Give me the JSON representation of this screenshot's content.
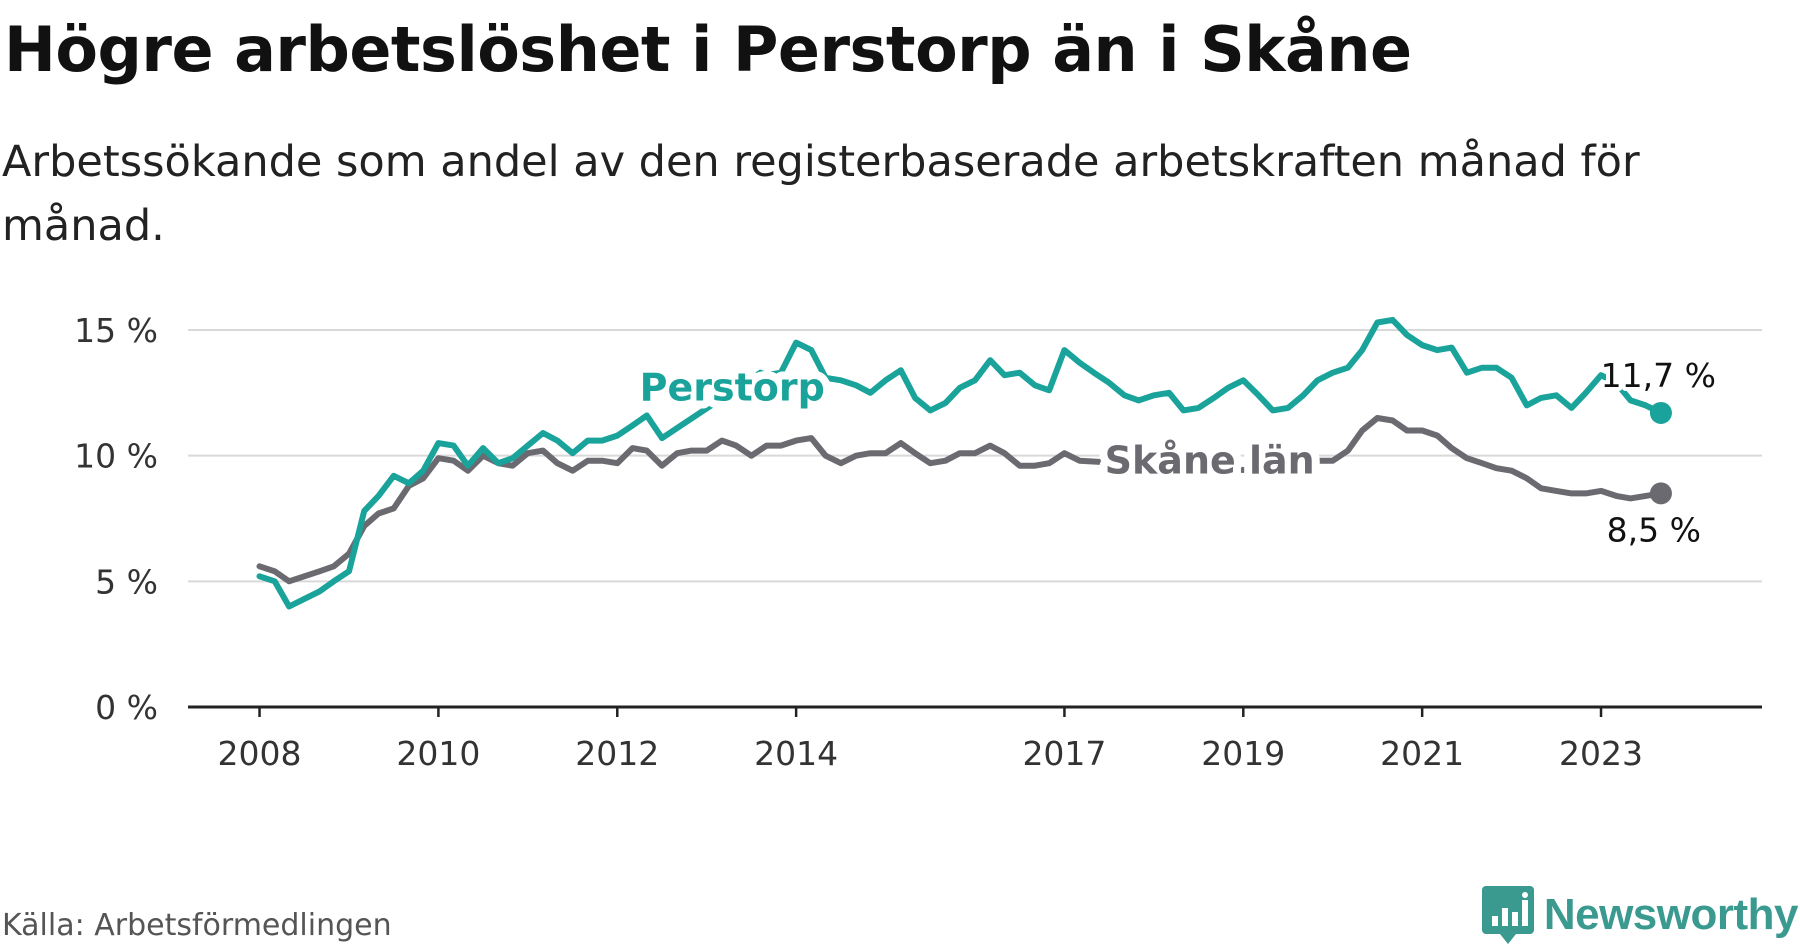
{
  "title": "Högre arbetslöshet i Perstorp än i Skåne",
  "subtitle": "Arbetssökande som andel av den registerbaserade arbetskraften månad för månad.",
  "source": "Källa: Arbetsförmedlingen",
  "brand": {
    "name": "Newsworthy",
    "logo_icon": "bar-chart-icon",
    "color": "#3a9a8f"
  },
  "colors": {
    "perstorp": "#1aa39a",
    "skane": "#6b6a70",
    "grid": "#d9d9d9",
    "axis": "#222222"
  },
  "chart_data": {
    "type": "line",
    "title": "Högre arbetslöshet i Perstorp än i Skåne",
    "xlabel": "",
    "ylabel": "",
    "ylim": [
      0,
      15
    ],
    "xlim": [
      2007.2,
      2024.8
    ],
    "grid": true,
    "y_ticks": [
      {
        "value": 0,
        "label": "0 %"
      },
      {
        "value": 5,
        "label": "5 %"
      },
      {
        "value": 10,
        "label": "10 %"
      },
      {
        "value": 15,
        "label": "15 %"
      }
    ],
    "x_ticks": [
      {
        "value": 2008,
        "label": "2008"
      },
      {
        "value": 2010,
        "label": "2010"
      },
      {
        "value": 2012,
        "label": "2012"
      },
      {
        "value": 2014,
        "label": "2014"
      },
      {
        "value": 2017,
        "label": "2017"
      },
      {
        "value": 2019,
        "label": "2019"
      },
      {
        "value": 2021,
        "label": "2021"
      },
      {
        "value": 2023,
        "label": "2023"
      }
    ],
    "series": [
      {
        "name": "Perstorp",
        "label_at": [
          2012.25,
          12.2
        ],
        "end_label": "11,7 %",
        "points": [
          [
            2008.0,
            5.2
          ],
          [
            2008.17,
            5.0
          ],
          [
            2008.33,
            4.0
          ],
          [
            2008.5,
            4.3
          ],
          [
            2008.67,
            4.6
          ],
          [
            2008.83,
            5.0
          ],
          [
            2009.0,
            5.4
          ],
          [
            2009.17,
            7.8
          ],
          [
            2009.33,
            8.4
          ],
          [
            2009.5,
            9.2
          ],
          [
            2009.67,
            8.9
          ],
          [
            2009.83,
            9.4
          ],
          [
            2010.0,
            10.5
          ],
          [
            2010.17,
            10.4
          ],
          [
            2010.33,
            9.6
          ],
          [
            2010.5,
            10.3
          ],
          [
            2010.67,
            9.7
          ],
          [
            2010.83,
            9.9
          ],
          [
            2011.0,
            10.4
          ],
          [
            2011.17,
            10.9
          ],
          [
            2011.33,
            10.6
          ],
          [
            2011.5,
            10.1
          ],
          [
            2011.67,
            10.6
          ],
          [
            2011.83,
            10.6
          ],
          [
            2012.0,
            10.8
          ],
          [
            2012.17,
            11.2
          ],
          [
            2012.33,
            11.6
          ],
          [
            2012.5,
            10.7
          ],
          [
            2012.67,
            11.1
          ],
          [
            2013.6,
            13.3
          ],
          [
            2013.67,
            13.2
          ],
          [
            2013.83,
            13.3
          ],
          [
            2014.0,
            14.5
          ],
          [
            2014.17,
            14.2
          ],
          [
            2014.33,
            13.1
          ],
          [
            2014.5,
            13.0
          ],
          [
            2014.67,
            12.8
          ],
          [
            2014.83,
            12.5
          ],
          [
            2015.0,
            13.0
          ],
          [
            2015.17,
            13.4
          ],
          [
            2015.33,
            12.3
          ],
          [
            2015.5,
            11.8
          ],
          [
            2015.67,
            12.1
          ],
          [
            2015.83,
            12.7
          ],
          [
            2016.0,
            13.0
          ],
          [
            2016.17,
            13.8
          ],
          [
            2016.33,
            13.2
          ],
          [
            2016.5,
            13.3
          ],
          [
            2016.67,
            12.8
          ],
          [
            2016.83,
            12.6
          ],
          [
            2017.0,
            14.2
          ],
          [
            2017.17,
            13.7
          ],
          [
            2017.33,
            13.3
          ],
          [
            2017.5,
            12.9
          ],
          [
            2017.67,
            12.4
          ],
          [
            2017.83,
            12.2
          ],
          [
            2018.0,
            12.4
          ],
          [
            2018.17,
            12.5
          ],
          [
            2018.33,
            11.8
          ],
          [
            2018.5,
            11.9
          ],
          [
            2018.67,
            12.3
          ],
          [
            2018.83,
            12.7
          ],
          [
            2019.0,
            13.0
          ],
          [
            2019.17,
            12.4
          ],
          [
            2019.33,
            11.8
          ],
          [
            2019.5,
            11.9
          ],
          [
            2019.67,
            12.4
          ],
          [
            2019.83,
            13.0
          ],
          [
            2020.0,
            13.3
          ],
          [
            2020.17,
            13.5
          ],
          [
            2020.33,
            14.2
          ],
          [
            2020.5,
            15.3
          ],
          [
            2020.67,
            15.4
          ],
          [
            2020.83,
            14.8
          ],
          [
            2021.0,
            14.4
          ],
          [
            2021.17,
            14.2
          ],
          [
            2021.33,
            14.3
          ],
          [
            2021.5,
            13.3
          ],
          [
            2021.67,
            13.5
          ],
          [
            2021.83,
            13.5
          ],
          [
            2022.0,
            13.1
          ],
          [
            2022.17,
            12.0
          ],
          [
            2022.33,
            12.3
          ],
          [
            2022.5,
            12.4
          ],
          [
            2022.67,
            11.9
          ],
          [
            2022.83,
            12.5
          ],
          [
            2023.0,
            13.2
          ],
          [
            2023.17,
            12.9
          ],
          [
            2023.33,
            12.2
          ],
          [
            2023.5,
            12.0
          ],
          [
            2023.67,
            11.7
          ]
        ]
      },
      {
        "name": "Skåne län",
        "label_at": [
          2017.45,
          9.3
        ],
        "end_label": "8,5 %",
        "points": [
          [
            2008.0,
            5.6
          ],
          [
            2008.17,
            5.4
          ],
          [
            2008.33,
            5.0
          ],
          [
            2008.5,
            5.2
          ],
          [
            2008.67,
            5.4
          ],
          [
            2008.83,
            5.6
          ],
          [
            2009.0,
            6.1
          ],
          [
            2009.17,
            7.2
          ],
          [
            2009.33,
            7.7
          ],
          [
            2009.5,
            7.9
          ],
          [
            2009.67,
            8.8
          ],
          [
            2009.83,
            9.1
          ],
          [
            2010.0,
            9.9
          ],
          [
            2010.17,
            9.8
          ],
          [
            2010.33,
            9.4
          ],
          [
            2010.5,
            10.0
          ],
          [
            2010.67,
            9.7
          ],
          [
            2010.83,
            9.6
          ],
          [
            2011.0,
            10.1
          ],
          [
            2011.17,
            10.2
          ],
          [
            2011.33,
            9.7
          ],
          [
            2011.5,
            9.4
          ],
          [
            2011.67,
            9.8
          ],
          [
            2011.83,
            9.8
          ],
          [
            2012.0,
            9.7
          ],
          [
            2012.17,
            10.3
          ],
          [
            2012.33,
            10.2
          ],
          [
            2012.5,
            9.6
          ],
          [
            2012.67,
            10.1
          ],
          [
            2012.83,
            10.2
          ],
          [
            2013.0,
            10.2
          ],
          [
            2013.17,
            10.6
          ],
          [
            2013.33,
            10.4
          ],
          [
            2013.5,
            10.0
          ],
          [
            2013.67,
            10.4
          ],
          [
            2013.83,
            10.4
          ],
          [
            2014.0,
            10.6
          ],
          [
            2014.17,
            10.7
          ],
          [
            2014.33,
            10.0
          ],
          [
            2014.5,
            9.7
          ],
          [
            2014.67,
            10.0
          ],
          [
            2014.83,
            10.1
          ],
          [
            2015.0,
            10.1
          ],
          [
            2015.17,
            10.5
          ],
          [
            2015.33,
            10.1
          ],
          [
            2015.5,
            9.7
          ],
          [
            2015.67,
            9.8
          ],
          [
            2015.83,
            10.1
          ],
          [
            2016.0,
            10.1
          ],
          [
            2016.17,
            10.4
          ],
          [
            2016.33,
            10.1
          ],
          [
            2016.5,
            9.6
          ],
          [
            2016.67,
            9.6
          ],
          [
            2016.83,
            9.7
          ],
          [
            2017.0,
            10.1
          ],
          [
            2017.17,
            9.8
          ],
          [
            2019.67,
            9.3
          ],
          [
            2019.83,
            9.8
          ],
          [
            2020.0,
            9.8
          ],
          [
            2020.17,
            10.2
          ],
          [
            2020.33,
            11.0
          ],
          [
            2020.5,
            11.5
          ],
          [
            2020.67,
            11.4
          ],
          [
            2020.83,
            11.0
          ],
          [
            2021.0,
            11.0
          ],
          [
            2021.17,
            10.8
          ],
          [
            2021.33,
            10.3
          ],
          [
            2021.5,
            9.9
          ],
          [
            2021.67,
            9.7
          ],
          [
            2021.83,
            9.5
          ],
          [
            2022.0,
            9.4
          ],
          [
            2022.17,
            9.1
          ],
          [
            2022.33,
            8.7
          ],
          [
            2022.5,
            8.6
          ],
          [
            2022.67,
            8.5
          ],
          [
            2022.83,
            8.5
          ],
          [
            2023.0,
            8.6
          ],
          [
            2023.17,
            8.4
          ],
          [
            2023.33,
            8.3
          ],
          [
            2023.5,
            8.4
          ],
          [
            2023.67,
            8.5
          ]
        ]
      }
    ]
  }
}
